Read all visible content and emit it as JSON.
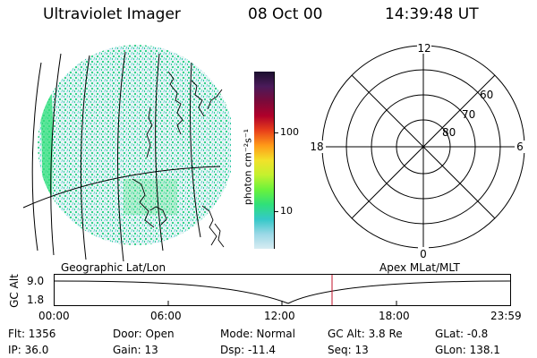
{
  "header": {
    "instrument": "Ultraviolet Imager",
    "date": "08 Oct 00",
    "time": "14:39:48 UT"
  },
  "colorbar": {
    "label": "photon cm⁻²s⁻¹",
    "ticks": [
      "100",
      "10"
    ],
    "colors": [
      "#1b0f2e",
      "#4b1a5a",
      "#7a0a3a",
      "#b0002a",
      "#e8401a",
      "#ff9a18",
      "#f2e12a",
      "#c4f12e",
      "#6af23c",
      "#2fe07a",
      "#34c8c8",
      "#9ad8e6",
      "#d8ecf2"
    ]
  },
  "polar": {
    "mlt_labels": {
      "top": "12",
      "right": "6",
      "bottom": "0",
      "left": "18"
    },
    "lat_labels": [
      "60",
      "70",
      "80"
    ]
  },
  "map_labels": {
    "left": "Geographic Lat/Lon",
    "right": "Apex MLat/MLT"
  },
  "orbit": {
    "ylabel": "GC Alt",
    "y_ticks": [
      "9.0",
      "1.8"
    ],
    "x_ticks": [
      "00:00",
      "06:00",
      "12:00",
      "18:00",
      "23:59"
    ],
    "current_time_marker": "14:39:48"
  },
  "info": {
    "flt": "Flt: 1356",
    "ip": "IP: 36.0",
    "door": "Door: Open",
    "gain": "Gain: 13",
    "mode": "Mode: Normal",
    "dsp": "Dsp:  -11.4",
    "gc_alt": "GC Alt: 3.8 Re",
    "seq": "Seq: 13",
    "glat": "GLat:  -0.8",
    "glon": "GLon: 138.1"
  }
}
